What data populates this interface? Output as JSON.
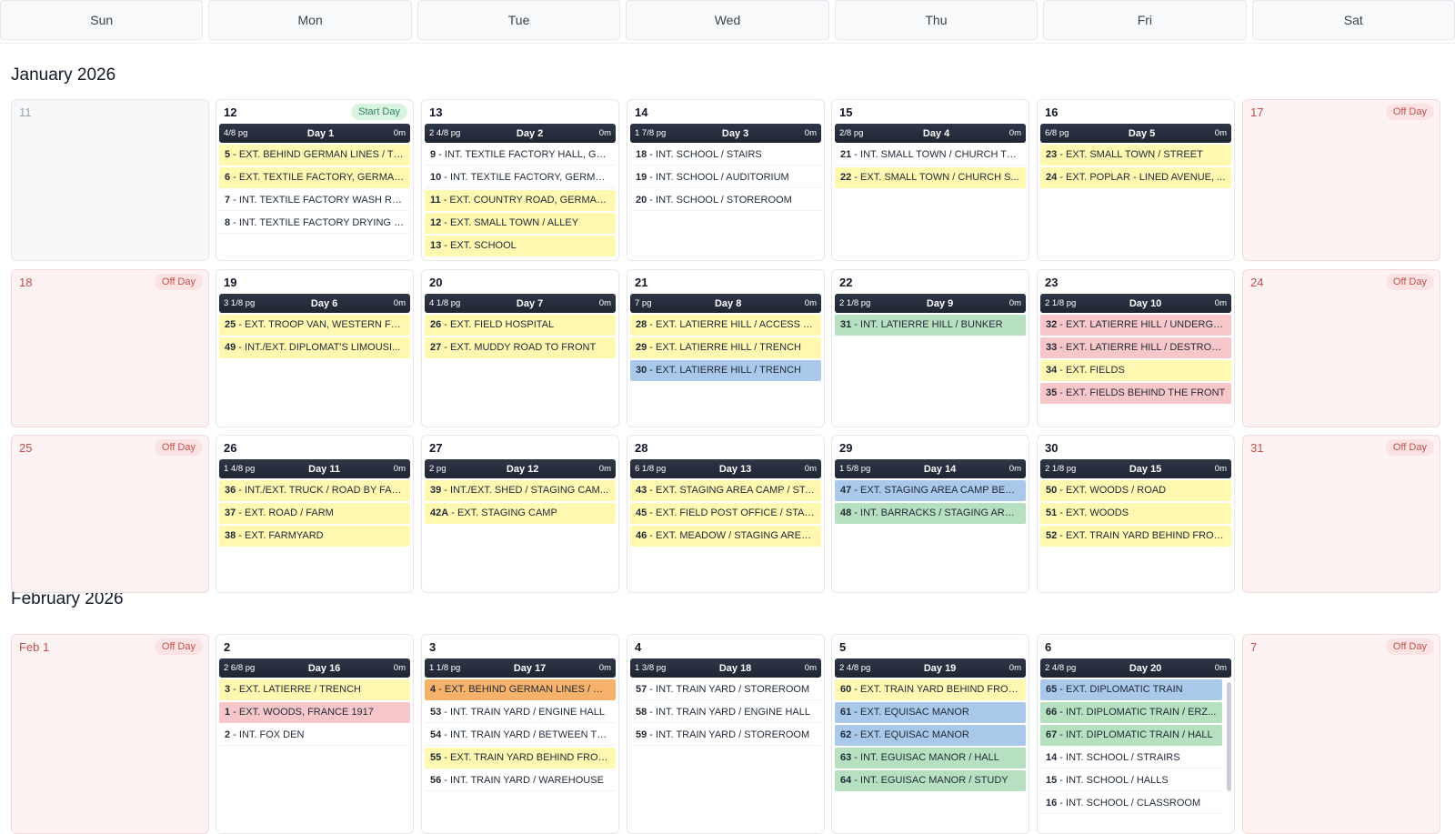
{
  "weekdays": [
    "Sun",
    "Mon",
    "Tue",
    "Wed",
    "Thu",
    "Fri",
    "Sat"
  ],
  "months": [
    {
      "title": "January 2026"
    },
    {
      "title": "February 2026"
    }
  ],
  "badges": {
    "off": "Off Day",
    "start": "Start Day"
  },
  "colors": {
    "yellow": "#fff8b0",
    "blue": "#aac8ea",
    "green": "#b7e0c1",
    "pink": "#f7c6c9",
    "orange": "#f6b26b",
    "white": "#ffffff",
    "header": "#1f2533"
  },
  "weeks": [
    {
      "cells": [
        {
          "date": "11",
          "type": "empty"
        },
        {
          "date": "12",
          "type": "work",
          "badge": "start",
          "pages": "4/8 pg",
          "day": "Day 1",
          "dur": "0m",
          "scenes": [
            {
              "num": "5",
              "text": "EXT. BEHIND GERMAN LINES / TR...",
              "color": "yellow"
            },
            {
              "num": "6",
              "text": "EXT. TEXTILE FACTORY, GERMANY",
              "color": "yellow"
            },
            {
              "num": "7",
              "text": "INT. TEXTILE FACTORY WASH RO...",
              "color": "white"
            },
            {
              "num": "8",
              "text": "INT. TEXTILE FACTORY DRYING R...",
              "color": "white"
            }
          ]
        },
        {
          "date": "13",
          "type": "work",
          "pages": "2 4/8 pg",
          "day": "Day 2",
          "dur": "0m",
          "scenes": [
            {
              "num": "9",
              "text": "INT. TEXTILE FACTORY HALL, GER...",
              "color": "white"
            },
            {
              "num": "10",
              "text": "INT. TEXTILE FACTORY, GERMANY",
              "color": "white"
            },
            {
              "num": "11",
              "text": "EXT. COUNTRY ROAD, GERMANY",
              "color": "yellow"
            },
            {
              "num": "12",
              "text": "EXT. SMALL TOWN / ALLEY",
              "color": "yellow"
            },
            {
              "num": "13",
              "text": "EXT. SCHOOL",
              "color": "yellow"
            }
          ]
        },
        {
          "date": "14",
          "type": "work",
          "pages": "1 7/8 pg",
          "day": "Day 3",
          "dur": "0m",
          "scenes": [
            {
              "num": "18",
              "text": "INT. SCHOOL / STAIRS",
              "color": "white"
            },
            {
              "num": "19",
              "text": "INT. SCHOOL / AUDITORIUM",
              "color": "white"
            },
            {
              "num": "20",
              "text": "INT. SCHOOL / STOREROOM",
              "color": "white"
            }
          ]
        },
        {
          "date": "15",
          "type": "work",
          "pages": "2/8 pg",
          "day": "Day 4",
          "dur": "0m",
          "scenes": [
            {
              "num": "21",
              "text": "INT. SMALL TOWN / CHURCH TO...",
              "color": "white"
            },
            {
              "num": "22",
              "text": "EXT. SMALL TOWN / CHURCH S...",
              "color": "yellow"
            }
          ]
        },
        {
          "date": "16",
          "type": "work",
          "pages": "6/8 pg",
          "day": "Day 5",
          "dur": "0m",
          "scenes": [
            {
              "num": "23",
              "text": "EXT. SMALL TOWN / STREET",
              "color": "yellow"
            },
            {
              "num": "24",
              "text": "EXT. POPLAR - LINED AVENUE, ...",
              "color": "yellow"
            }
          ]
        },
        {
          "date": "17",
          "type": "off"
        }
      ]
    },
    {
      "cells": [
        {
          "date": "18",
          "type": "off"
        },
        {
          "date": "19",
          "type": "work",
          "pages": "3 1/8 pg",
          "day": "Day 6",
          "dur": "0m",
          "scenes": [
            {
              "num": "25",
              "text": "EXT. TROOP VAN, WESTERN FR...",
              "color": "yellow"
            },
            {
              "num": "49",
              "text": "INT./EXT. DIPLOMAT'S LIMOUSI...",
              "color": "yellow"
            }
          ]
        },
        {
          "date": "20",
          "type": "work",
          "pages": "4 1/8 pg",
          "day": "Day 7",
          "dur": "0m",
          "scenes": [
            {
              "num": "26",
              "text": "EXT. FIELD HOSPITAL",
              "color": "yellow"
            },
            {
              "num": "27",
              "text": "EXT. MUDDY ROAD TO FRONT",
              "color": "yellow"
            }
          ]
        },
        {
          "date": "21",
          "type": "work",
          "pages": "7 pg",
          "day": "Day 8",
          "dur": "0m",
          "scenes": [
            {
              "num": "28",
              "text": "EXT. LATIERRE HILL / ACCESS T...",
              "color": "yellow"
            },
            {
              "num": "29",
              "text": "EXT. LATIERRE HILL / TRENCH",
              "color": "yellow"
            },
            {
              "num": "30",
              "text": "EXT. LATIERRE HILL / TRENCH",
              "color": "blue"
            }
          ]
        },
        {
          "date": "22",
          "type": "work",
          "pages": "2 1/8 pg",
          "day": "Day 9",
          "dur": "0m",
          "scenes": [
            {
              "num": "31",
              "text": "INT. LATIERRE HILL / BUNKER",
              "color": "green"
            }
          ]
        },
        {
          "date": "23",
          "type": "work",
          "pages": "2 1/8 pg",
          "day": "Day 10",
          "dur": "0m",
          "scenes": [
            {
              "num": "32",
              "text": "EXT. LATIERRE HILL / UNDERGR...",
              "color": "pink"
            },
            {
              "num": "33",
              "text": "EXT. LATIERRE HILL / DESTROYE...",
              "color": "pink"
            },
            {
              "num": "34",
              "text": "EXT. FIELDS",
              "color": "yellow"
            },
            {
              "num": "35",
              "text": "EXT. FIELDS BEHIND THE FRONT",
              "color": "pink"
            }
          ]
        },
        {
          "date": "24",
          "type": "off"
        }
      ]
    },
    {
      "cells": [
        {
          "date": "25",
          "type": "off"
        },
        {
          "date": "26",
          "type": "work",
          "pages": "1 4/8 pg",
          "day": "Day 11",
          "dur": "0m",
          "scenes": [
            {
              "num": "36",
              "text": "INT./EXT. TRUCK / ROAD BY FARM",
              "color": "yellow"
            },
            {
              "num": "37",
              "text": "EXT. ROAD / FARM",
              "color": "yellow"
            },
            {
              "num": "38",
              "text": "EXT. FARMYARD",
              "color": "yellow"
            }
          ]
        },
        {
          "date": "27",
          "type": "work",
          "pages": "2 pg",
          "day": "Day 12",
          "dur": "0m",
          "scenes": [
            {
              "num": "39",
              "text": "INT./EXT. SHED / STAGING CAM...",
              "color": "yellow"
            },
            {
              "num": "42A",
              "text": "EXT. STAGING CAMP",
              "color": "yellow"
            }
          ]
        },
        {
          "date": "28",
          "type": "work",
          "pages": "6 1/8 pg",
          "day": "Day 13",
          "dur": "0m",
          "scenes": [
            {
              "num": "43",
              "text": "EXT. STAGING AREA CAMP / STA...",
              "color": "yellow"
            },
            {
              "num": "45",
              "text": "EXT. FIELD POST OFFICE / STAGI...",
              "color": "yellow"
            },
            {
              "num": "46",
              "text": "EXT. MEADOW / STAGING AREA ...",
              "color": "yellow"
            }
          ]
        },
        {
          "date": "29",
          "type": "work",
          "pages": "1 5/8 pg",
          "day": "Day 14",
          "dur": "0m",
          "scenes": [
            {
              "num": "47",
              "text": "EXT. STAGING AREA CAMP BEHI...",
              "color": "blue"
            },
            {
              "num": "48",
              "text": "INT. BARRACKS / STAGING AREA...",
              "color": "green"
            }
          ]
        },
        {
          "date": "30",
          "type": "work",
          "pages": "2 1/8 pg",
          "day": "Day 15",
          "dur": "0m",
          "scenes": [
            {
              "num": "50",
              "text": "EXT. WOODS / ROAD",
              "color": "yellow"
            },
            {
              "num": "51",
              "text": "EXT. WOODS",
              "color": "yellow"
            },
            {
              "num": "52",
              "text": "EXT. TRAIN YARD BEHIND FRON...",
              "color": "yellow"
            }
          ]
        },
        {
          "date": "31",
          "type": "off"
        }
      ]
    },
    {
      "cells": [
        {
          "date": "Feb 1",
          "type": "off"
        },
        {
          "date": "2",
          "type": "work",
          "pages": "2 6/8 pg",
          "day": "Day 16",
          "dur": "0m",
          "scenes": [
            {
              "num": "3",
              "text": "EXT. LATIERRE / TRENCH",
              "color": "yellow"
            },
            {
              "num": "1",
              "text": "EXT. WOODS, FRANCE 1917",
              "color": "pink"
            },
            {
              "num": "2",
              "text": "INT. FOX DEN",
              "color": "white"
            }
          ]
        },
        {
          "date": "3",
          "type": "work",
          "pages": "1 1/8 pg",
          "day": "Day 17",
          "dur": "0m",
          "scenes": [
            {
              "num": "4",
              "text": "EXT. BEHIND GERMAN LINES / MA...",
              "color": "orange"
            },
            {
              "num": "53",
              "text": "INT. TRAIN YARD / ENGINE HALL",
              "color": "white"
            },
            {
              "num": "54",
              "text": "INT. TRAIN YARD / BETWEEN TW...",
              "color": "white"
            },
            {
              "num": "55",
              "text": "EXT. TRAIN YARD BEHIND FRON...",
              "color": "yellow"
            },
            {
              "num": "56",
              "text": "INT. TRAIN YARD / WAREHOUSE",
              "color": "white"
            }
          ]
        },
        {
          "date": "4",
          "type": "work",
          "pages": "1 3/8 pg",
          "day": "Day 18",
          "dur": "0m",
          "scenes": [
            {
              "num": "57",
              "text": "INT. TRAIN YARD / STOREROOM",
              "color": "white"
            },
            {
              "num": "58",
              "text": "INT. TRAIN YARD / ENGINE HALL",
              "color": "white"
            },
            {
              "num": "59",
              "text": "INT. TRAIN YARD / STOREROOM",
              "color": "white"
            }
          ]
        },
        {
          "date": "5",
          "type": "work",
          "pages": "2 4/8 pg",
          "day": "Day 19",
          "dur": "0m",
          "scenes": [
            {
              "num": "60",
              "text": "EXT. TRAIN YARD BEHIND FRON...",
              "color": "yellow"
            },
            {
              "num": "61",
              "text": "EXT. EQUISAC MANOR",
              "color": "blue"
            },
            {
              "num": "62",
              "text": "EXT. EQUISAC MANOR",
              "color": "blue"
            },
            {
              "num": "63",
              "text": "INT. EGUISAC MANOR / HALL",
              "color": "green"
            },
            {
              "num": "64",
              "text": "INT. EGUISAC MANOR / STUDY",
              "color": "green"
            }
          ]
        },
        {
          "date": "6",
          "type": "work",
          "pages": "2 4/8 pg",
          "day": "Day 20",
          "dur": "0m",
          "scroll": true,
          "scenes": [
            {
              "num": "65",
              "text": "EXT. DIPLOMATIC TRAIN",
              "color": "blue"
            },
            {
              "num": "66",
              "text": "INT. DIPLOMATIC TRAIN / ERZ...",
              "color": "green"
            },
            {
              "num": "67",
              "text": "INT. DIPLOMATIC TRAIN / HALL",
              "color": "green"
            },
            {
              "num": "14",
              "text": "INT. SCHOOL / STRAIRS",
              "color": "white"
            },
            {
              "num": "15",
              "text": "INT. SCHOOL / HALLS",
              "color": "white"
            },
            {
              "num": "16",
              "text": "INT. SCHOOL / CLASSROOM",
              "color": "white"
            }
          ]
        },
        {
          "date": "7",
          "type": "off"
        }
      ]
    }
  ]
}
